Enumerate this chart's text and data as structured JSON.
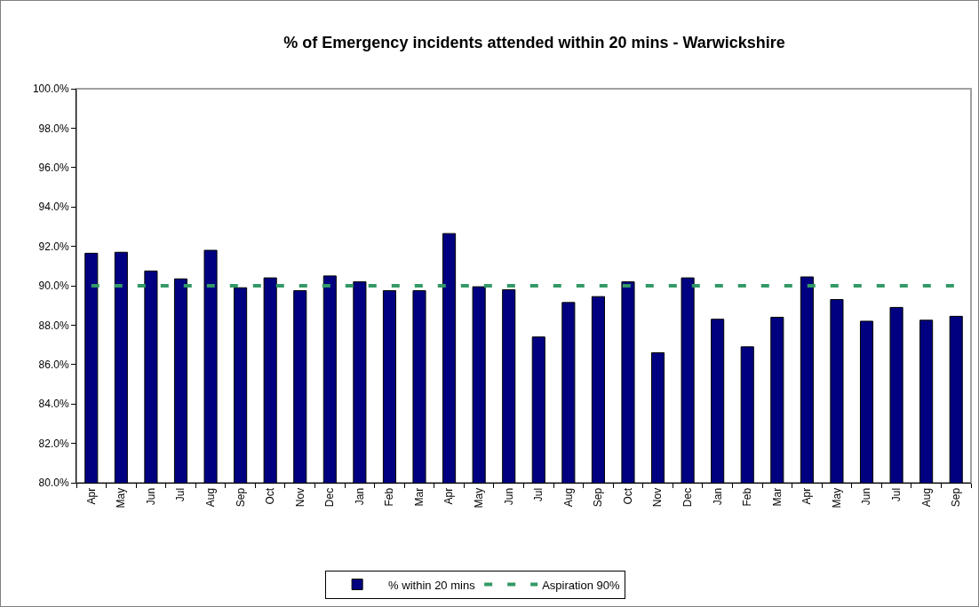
{
  "chart_data": {
    "type": "bar",
    "title": "% of Emergency incidents attended within 20 mins - Warwickshire",
    "categories": [
      "Apr",
      "May",
      "Jun",
      "Jul",
      "Aug",
      "Sep",
      "Oct",
      "Nov",
      "Dec",
      "Jan",
      "Feb",
      "Mar",
      "Apr",
      "May",
      "Jun",
      "Jul",
      "Aug",
      "Sep",
      "Oct",
      "Nov",
      "Dec",
      "Jan",
      "Feb",
      "Mar",
      "Apr",
      "May",
      "Jun",
      "Jul",
      "Aug",
      "Sep"
    ],
    "series": [
      {
        "name": "% within 20 mins",
        "color": "#000080",
        "values": [
          91.65,
          91.7,
          90.75,
          90.35,
          91.8,
          89.9,
          90.4,
          89.75,
          90.5,
          90.2,
          89.75,
          89.75,
          92.65,
          89.95,
          89.8,
          87.4,
          89.15,
          89.45,
          90.2,
          86.6,
          90.4,
          88.3,
          86.9,
          88.4,
          90.45,
          89.3,
          88.2,
          88.9,
          88.25,
          88.45
        ]
      },
      {
        "name": "Aspiration 90%",
        "type": "line",
        "color": "#339966",
        "values": [
          90,
          90,
          90,
          90,
          90,
          90,
          90,
          90,
          90,
          90,
          90,
          90,
          90,
          90,
          90,
          90,
          90,
          90,
          90,
          90,
          90,
          90,
          90,
          90,
          90,
          90,
          90,
          90,
          90,
          90
        ]
      }
    ],
    "ylim": [
      80,
      100
    ],
    "yticks": [
      {
        "value": 80,
        "label": "80.0%"
      },
      {
        "value": 82,
        "label": "82.0%"
      },
      {
        "value": 84,
        "label": "84.0%"
      },
      {
        "value": 86,
        "label": "86.0%"
      },
      {
        "value": 88,
        "label": "88.0%"
      },
      {
        "value": 90,
        "label": "90.0%"
      },
      {
        "value": 92,
        "label": "92.0%"
      },
      {
        "value": 94,
        "label": "94.0%"
      },
      {
        "value": 96,
        "label": "96.0%"
      },
      {
        "value": 98,
        "label": "98.0%"
      },
      {
        "value": 100,
        "label": "100.0%"
      }
    ],
    "grid": false,
    "legend": "bottom",
    "marker": "none",
    "line_style": "dashed"
  }
}
